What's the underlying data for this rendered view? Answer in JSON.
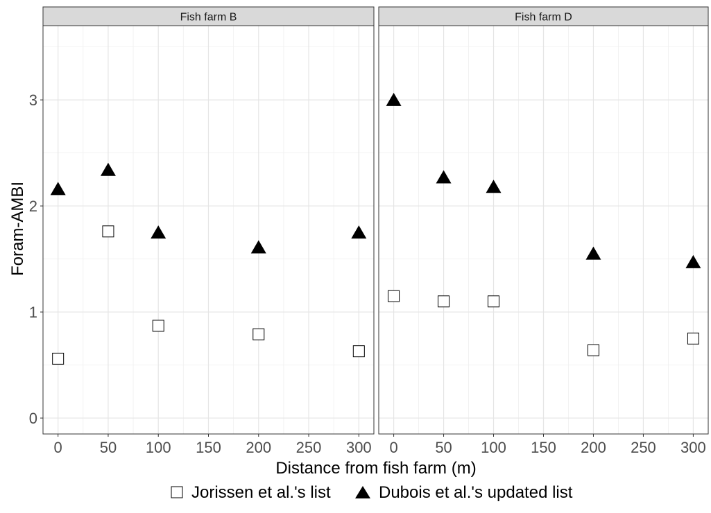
{
  "chart_data": {
    "type": "scatter",
    "xlabel": "Distance from fish farm (m)",
    "ylabel": "Foram-AMBI",
    "xlim": [
      -15,
      315
    ],
    "ylim": [
      -0.15,
      3.7
    ],
    "x_ticks": [
      0,
      50,
      100,
      150,
      200,
      250,
      300
    ],
    "x_tick_labels": [
      "0",
      "50",
      "100",
      "150",
      "200",
      "250",
      "300"
    ],
    "y_ticks": [
      0,
      1,
      2,
      3
    ],
    "y_tick_labels": [
      "0",
      "1",
      "2",
      "3"
    ],
    "grid": true,
    "legend_position": "bottom",
    "series": [
      {
        "name": "Jorissen et al.'s list",
        "marker": "open-square",
        "color": "#000000"
      },
      {
        "name": "Dubois et al.'s updated list",
        "marker": "filled-triangle",
        "color": "#000000"
      }
    ],
    "panels": [
      {
        "title": "Fish farm B",
        "series": [
          {
            "x": [
              0,
              50,
              100,
              200,
              300
            ],
            "y": [
              0.56,
              1.76,
              0.87,
              0.79,
              0.63
            ]
          },
          {
            "x": [
              0,
              50,
              100,
              200,
              300
            ],
            "y": [
              2.15,
              2.33,
              1.74,
              1.6,
              1.74
            ]
          }
        ]
      },
      {
        "title": "Fish farm D",
        "series": [
          {
            "x": [
              0,
              50,
              100,
              200,
              300
            ],
            "y": [
              1.15,
              1.1,
              1.1,
              0.64,
              0.75
            ]
          },
          {
            "x": [
              0,
              50,
              100,
              200,
              300
            ],
            "y": [
              2.99,
              2.26,
              2.17,
              1.54,
              1.46
            ]
          }
        ]
      }
    ]
  }
}
